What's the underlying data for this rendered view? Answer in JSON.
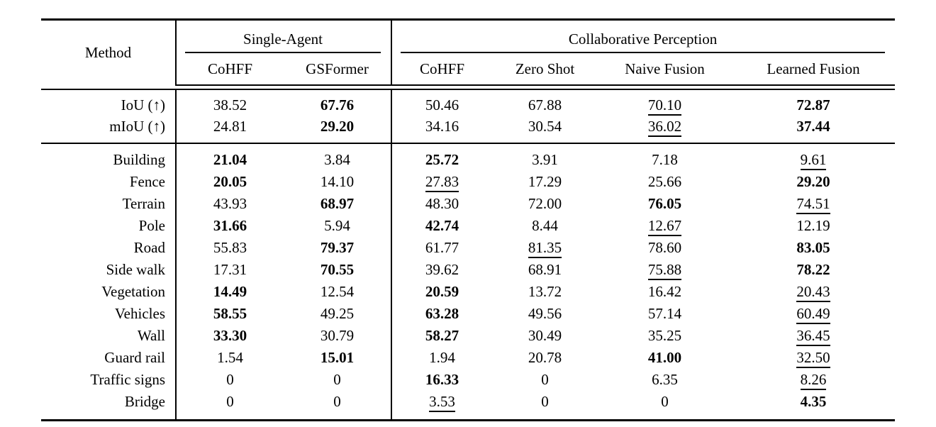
{
  "table": {
    "corner_label": "Method",
    "groups": [
      {
        "label": "Single-Agent",
        "columns": [
          "CoHFF",
          "GSFormer"
        ]
      },
      {
        "label": "Collaborative Perception",
        "columns": [
          "CoHFF",
          "Zero Shot",
          "Naive Fusion",
          "Learned Fusion"
        ]
      }
    ],
    "metric_rows": [
      {
        "label": "IoU (↑)",
        "cells": [
          {
            "t": "38.52",
            "e": ""
          },
          {
            "t": "67.76",
            "e": "b"
          },
          {
            "t": "50.46",
            "e": ""
          },
          {
            "t": "67.88",
            "e": ""
          },
          {
            "t": "70.10",
            "e": "u"
          },
          {
            "t": "72.87",
            "e": "b"
          }
        ]
      },
      {
        "label": "mIoU (↑)",
        "cells": [
          {
            "t": "24.81",
            "e": ""
          },
          {
            "t": "29.20",
            "e": "b"
          },
          {
            "t": "34.16",
            "e": ""
          },
          {
            "t": "30.54",
            "e": ""
          },
          {
            "t": "36.02",
            "e": "u"
          },
          {
            "t": "37.44",
            "e": "b"
          }
        ]
      }
    ],
    "class_rows": [
      {
        "label": "Building",
        "cells": [
          {
            "t": "21.04",
            "e": "b"
          },
          {
            "t": "3.84",
            "e": ""
          },
          {
            "t": "25.72",
            "e": "b"
          },
          {
            "t": "3.91",
            "e": ""
          },
          {
            "t": "7.18",
            "e": ""
          },
          {
            "t": "9.61",
            "e": "u"
          }
        ]
      },
      {
        "label": "Fence",
        "cells": [
          {
            "t": "20.05",
            "e": "b"
          },
          {
            "t": "14.10",
            "e": ""
          },
          {
            "t": "27.83",
            "e": "u"
          },
          {
            "t": "17.29",
            "e": ""
          },
          {
            "t": "25.66",
            "e": ""
          },
          {
            "t": "29.20",
            "e": "b"
          }
        ]
      },
      {
        "label": "Terrain",
        "cells": [
          {
            "t": "43.93",
            "e": ""
          },
          {
            "t": "68.97",
            "e": "b"
          },
          {
            "t": "48.30",
            "e": ""
          },
          {
            "t": "72.00",
            "e": ""
          },
          {
            "t": "76.05",
            "e": "b"
          },
          {
            "t": "74.51",
            "e": "u"
          }
        ]
      },
      {
        "label": "Pole",
        "cells": [
          {
            "t": "31.66",
            "e": "b"
          },
          {
            "t": "5.94",
            "e": ""
          },
          {
            "t": "42.74",
            "e": "b"
          },
          {
            "t": "8.44",
            "e": ""
          },
          {
            "t": "12.67",
            "e": "u"
          },
          {
            "t": "12.19",
            "e": ""
          }
        ]
      },
      {
        "label": "Road",
        "cells": [
          {
            "t": "55.83",
            "e": ""
          },
          {
            "t": "79.37",
            "e": "b"
          },
          {
            "t": "61.77",
            "e": ""
          },
          {
            "t": "81.35",
            "e": "u"
          },
          {
            "t": "78.60",
            "e": ""
          },
          {
            "t": "83.05",
            "e": "b"
          }
        ]
      },
      {
        "label": "Side walk",
        "cells": [
          {
            "t": "17.31",
            "e": ""
          },
          {
            "t": "70.55",
            "e": "b"
          },
          {
            "t": "39.62",
            "e": ""
          },
          {
            "t": "68.91",
            "e": ""
          },
          {
            "t": "75.88",
            "e": "u"
          },
          {
            "t": "78.22",
            "e": "b"
          }
        ]
      },
      {
        "label": "Vegetation",
        "cells": [
          {
            "t": "14.49",
            "e": "b"
          },
          {
            "t": "12.54",
            "e": ""
          },
          {
            "t": "20.59",
            "e": "b"
          },
          {
            "t": "13.72",
            "e": ""
          },
          {
            "t": "16.42",
            "e": ""
          },
          {
            "t": "20.43",
            "e": "u"
          }
        ]
      },
      {
        "label": "Vehicles",
        "cells": [
          {
            "t": "58.55",
            "e": "b"
          },
          {
            "t": "49.25",
            "e": ""
          },
          {
            "t": "63.28",
            "e": "b"
          },
          {
            "t": "49.56",
            "e": ""
          },
          {
            "t": "57.14",
            "e": ""
          },
          {
            "t": "60.49",
            "e": "u"
          }
        ]
      },
      {
        "label": "Wall",
        "cells": [
          {
            "t": "33.30",
            "e": "b"
          },
          {
            "t": "30.79",
            "e": ""
          },
          {
            "t": "58.27",
            "e": "b"
          },
          {
            "t": "30.49",
            "e": ""
          },
          {
            "t": "35.25",
            "e": ""
          },
          {
            "t": "36.45",
            "e": "u"
          }
        ]
      },
      {
        "label": "Guard rail",
        "cells": [
          {
            "t": "1.54",
            "e": ""
          },
          {
            "t": "15.01",
            "e": "b"
          },
          {
            "t": "1.94",
            "e": ""
          },
          {
            "t": "20.78",
            "e": ""
          },
          {
            "t": "41.00",
            "e": "b"
          },
          {
            "t": "32.50",
            "e": "u"
          }
        ]
      },
      {
        "label": "Traffic signs",
        "cells": [
          {
            "t": "0",
            "e": ""
          },
          {
            "t": "0",
            "e": ""
          },
          {
            "t": "16.33",
            "e": "b"
          },
          {
            "t": "0",
            "e": ""
          },
          {
            "t": "6.35",
            "e": ""
          },
          {
            "t": "8.26",
            "e": "u"
          }
        ]
      },
      {
        "label": "Bridge",
        "cells": [
          {
            "t": "0",
            "e": ""
          },
          {
            "t": "0",
            "e": ""
          },
          {
            "t": "3.53",
            "e": "u"
          },
          {
            "t": "0",
            "e": ""
          },
          {
            "t": "0",
            "e": ""
          },
          {
            "t": "4.35",
            "e": "b"
          }
        ]
      }
    ],
    "emphasis_legend": {
      "b": "bold (best)",
      "u": "underline (second best)",
      "": "plain"
    }
  }
}
